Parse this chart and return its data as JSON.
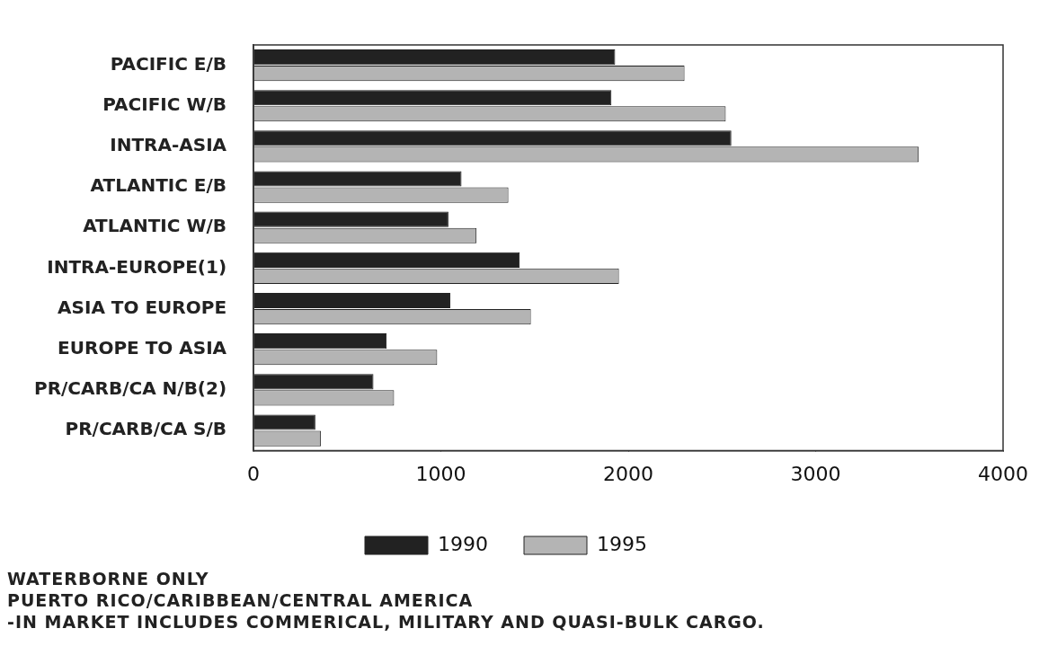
{
  "chart_data": {
    "type": "bar",
    "orientation": "horizontal",
    "categories": [
      "PACIFIC E/B",
      "PACIFIC W/B",
      "INTRA-ASIA",
      "ATLANTIC E/B",
      "ATLANTIC W/B",
      "INTRA-EUROPE(1)",
      "ASIA TO EUROPE",
      "EUROPE TO ASIA",
      "PR/CARB/CA N/B(2)",
      "PR/CARB/CA S/B"
    ],
    "series": [
      {
        "name": "1990",
        "color": "#222222",
        "values": [
          1930,
          1910,
          2550,
          1110,
          1040,
          1420,
          1050,
          710,
          640,
          330
        ]
      },
      {
        "name": "1995",
        "color": "#b4b4b4",
        "values": [
          2300,
          2520,
          3550,
          1360,
          1190,
          1950,
          1480,
          980,
          750,
          360
        ]
      }
    ],
    "xlim": [
      0,
      4000
    ],
    "xticks": [
      0,
      1000,
      2000,
      3000,
      4000
    ],
    "grid": false,
    "legend": "bottom",
    "annotations": [
      "WATERBORNE ONLY",
      "PUERTO RICO/CARIBBEAN/CENTRAL AMERICA",
      "-IN MARKET INCLUDES COMMERICAL, MILITARY AND QUASI-BULK CARGO."
    ]
  }
}
